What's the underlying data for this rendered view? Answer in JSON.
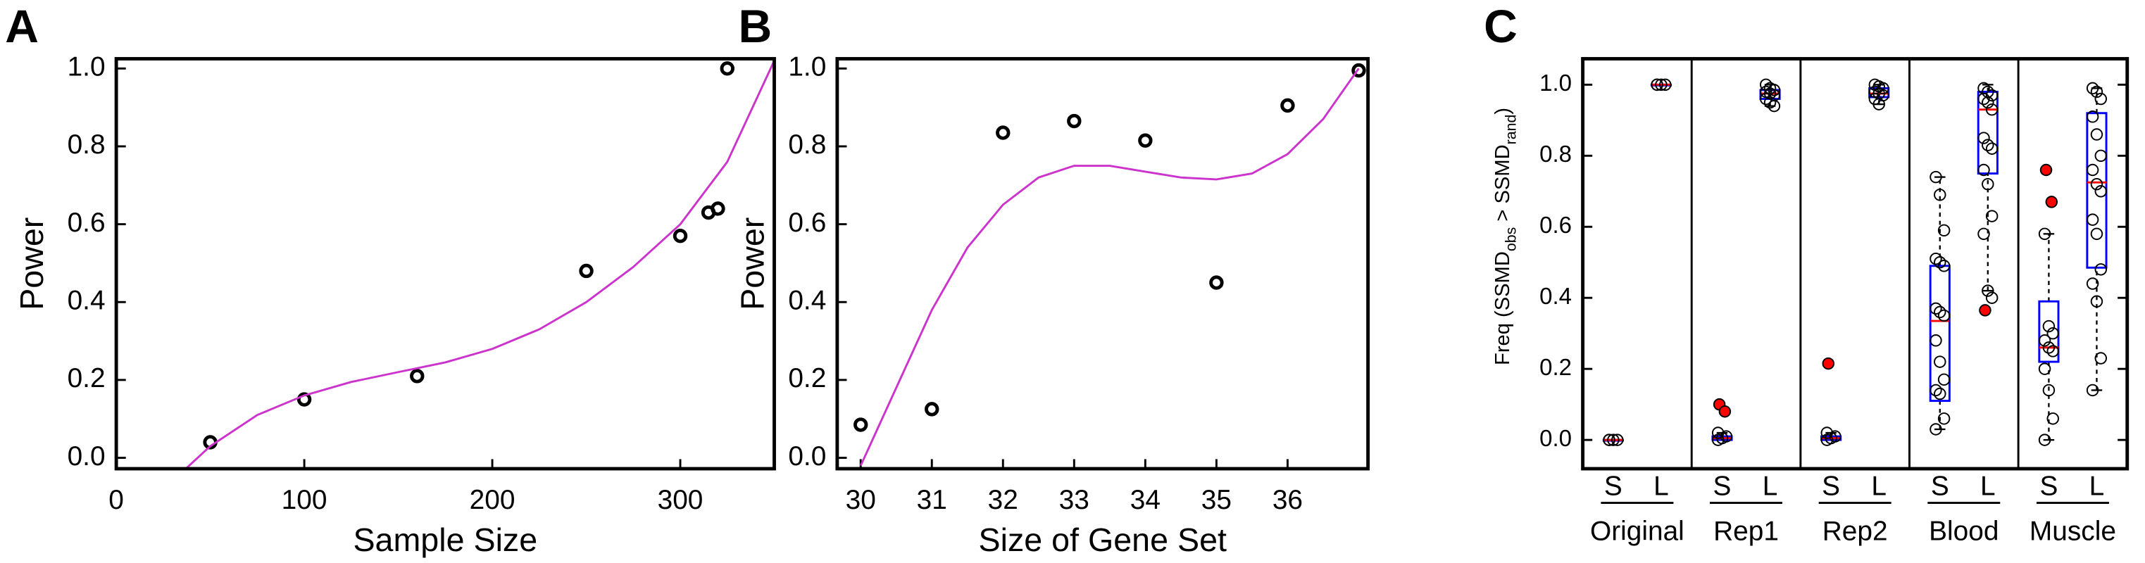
{
  "chart_data": [
    {
      "type": "scatter",
      "panel_label": "A",
      "xlabel": "Sample Size",
      "ylabel": "Power",
      "xlim": [
        0,
        350
      ],
      "ylim": [
        -0.028,
        1.025
      ],
      "xticks": [
        0,
        100,
        200,
        300
      ],
      "yticks": [
        {
          "value": 0,
          "label": "0.0"
        },
        {
          "value": 0.2,
          "label": "0.2"
        },
        {
          "value": 0.4,
          "label": "0.4"
        },
        {
          "value": 0.6,
          "label": "0.6"
        },
        {
          "value": 0.8,
          "label": "0.8"
        },
        {
          "value": 1,
          "label": "1.0"
        }
      ],
      "series": [
        {
          "type": "scatter",
          "color": "#000000",
          "x": [
            50,
            100,
            160,
            250,
            300,
            315,
            320,
            325
          ],
          "values": [
            0.04,
            0.15,
            0.21,
            0.48,
            0.57,
            0.63,
            0.64,
            1.0
          ]
        },
        {
          "type": "line",
          "color": "#cc33cc",
          "x": [
            37,
            50,
            75,
            100,
            125,
            150,
            175,
            200,
            225,
            250,
            275,
            300,
            325,
            350
          ],
          "values": [
            -0.028,
            0.03,
            0.11,
            0.16,
            0.195,
            0.22,
            0.245,
            0.28,
            0.33,
            0.4,
            0.49,
            0.6,
            0.76,
            1.02
          ]
        }
      ]
    },
    {
      "type": "scatter",
      "panel_label": "B",
      "xlabel": "Size of Gene Set",
      "ylabel": "Power",
      "xlim": [
        29.67,
        37.13
      ],
      "ylim": [
        -0.028,
        1.025
      ],
      "xticks": [
        30,
        31,
        32,
        33,
        34,
        35,
        36
      ],
      "yticks": [
        {
          "value": 0,
          "label": "0.0"
        },
        {
          "value": 0.2,
          "label": "0.2"
        },
        {
          "value": 0.4,
          "label": "0.4"
        },
        {
          "value": 0.6,
          "label": "0.6"
        },
        {
          "value": 0.8,
          "label": "0.8"
        },
        {
          "value": 1,
          "label": "1.0"
        }
      ],
      "series": [
        {
          "type": "scatter",
          "color": "#000000",
          "x": [
            30,
            31,
            32,
            33,
            34,
            35,
            36,
            37
          ],
          "values": [
            0.085,
            0.125,
            0.835,
            0.865,
            0.815,
            0.45,
            0.905,
            0.995
          ]
        },
        {
          "type": "line",
          "color": "#cc33cc",
          "x": [
            30,
            30.5,
            31,
            31.5,
            32,
            32.5,
            33,
            33.5,
            34,
            34.5,
            35,
            35.5,
            36,
            36.5,
            37
          ],
          "values": [
            -0.02,
            0.18,
            0.38,
            0.54,
            0.65,
            0.72,
            0.75,
            0.75,
            0.735,
            0.72,
            0.715,
            0.73,
            0.78,
            0.87,
            1.0
          ]
        }
      ]
    },
    {
      "type": "box",
      "panel_label": "C",
      "ylabel_parts": [
        "Freq (SSMD",
        "obs",
        " > SSMD",
        "rand",
        ")"
      ],
      "ylim": [
        -0.081,
        1.073
      ],
      "yticks": [
        {
          "value": 0,
          "label": "0.0"
        },
        {
          "value": 0.2,
          "label": "0.2"
        },
        {
          "value": 0.4,
          "label": "0.4"
        },
        {
          "value": 0.6,
          "label": "0.6"
        },
        {
          "value": 0.8,
          "label": "0.8"
        },
        {
          "value": 1,
          "label": "1.0"
        }
      ],
      "box_color": "#0000ff",
      "median_color": "#ff0000",
      "outlier_color": "#ff0000",
      "groups": [
        {
          "name": "Original",
          "boxes": [
            {
              "label": "S",
              "q1": 0,
              "median": 0,
              "q3": 0,
              "whisker_low": 0,
              "whisker_high": 0,
              "points": [
                0,
                0,
                0,
                0
              ],
              "outliers": []
            },
            {
              "label": "L",
              "q1": 1,
              "median": 1,
              "q3": 1,
              "whisker_low": 1,
              "whisker_high": 1,
              "points": [
                1,
                1,
                1,
                1
              ],
              "outliers": []
            }
          ]
        },
        {
          "name": "Rep1",
          "boxes": [
            {
              "label": "S",
              "q1": 0,
              "median": 0.005,
              "q3": 0.01,
              "whisker_low": 0,
              "whisker_high": 0.02,
              "points": [
                0,
                0.005,
                0.01,
                0.02
              ],
              "outliers": [
                0.1,
                0.08
              ]
            },
            {
              "label": "L",
              "q1": 0.96,
              "median": 0.975,
              "q3": 0.985,
              "whisker_low": 0.94,
              "whisker_high": 1.0,
              "points": [
                1.0,
                0.99,
                0.985,
                0.98,
                0.975,
                0.97,
                0.96,
                0.95,
                0.94
              ],
              "outliers": []
            }
          ]
        },
        {
          "name": "Rep2",
          "boxes": [
            {
              "label": "S",
              "q1": 0,
              "median": 0.005,
              "q3": 0.01,
              "whisker_low": 0,
              "whisker_high": 0.02,
              "points": [
                0,
                0.005,
                0.01,
                0.02
              ],
              "outliers": [
                0.215
              ]
            },
            {
              "label": "L",
              "q1": 0.965,
              "median": 0.975,
              "q3": 0.99,
              "whisker_low": 0.945,
              "whisker_high": 1.0,
              "points": [
                1.0,
                0.995,
                0.99,
                0.98,
                0.975,
                0.97,
                0.96,
                0.945
              ],
              "outliers": []
            }
          ]
        },
        {
          "name": "Blood",
          "boxes": [
            {
              "label": "S",
              "q1": 0.11,
              "median": 0.335,
              "q3": 0.49,
              "whisker_low": 0.03,
              "whisker_high": 0.74,
              "points": [
                0.74,
                0.69,
                0.59,
                0.51,
                0.5,
                0.49,
                0.37,
                0.36,
                0.35,
                0.28,
                0.22,
                0.17,
                0.14,
                0.13,
                0.06,
                0.03
              ],
              "outliers": []
            },
            {
              "label": "L",
              "q1": 0.75,
              "median": 0.93,
              "q3": 0.98,
              "whisker_low": 0.42,
              "whisker_high": 1.0,
              "points": [
                0.99,
                0.98,
                0.97,
                0.96,
                0.95,
                0.93,
                0.85,
                0.83,
                0.82,
                0.76,
                0.72,
                0.63,
                0.58,
                0.42,
                0.4
              ],
              "outliers": [
                0.365
              ]
            }
          ]
        },
        {
          "name": "Muscle",
          "boxes": [
            {
              "label": "S",
              "q1": 0.22,
              "median": 0.26,
              "q3": 0.39,
              "whisker_low": 0,
              "whisker_high": 0.58,
              "points": [
                0.58,
                0.32,
                0.3,
                0.28,
                0.26,
                0.25,
                0.2,
                0.14,
                0.06,
                0
              ],
              "outliers": [
                0.76,
                0.67
              ]
            },
            {
              "label": "L",
              "q1": 0.485,
              "median": 0.725,
              "q3": 0.92,
              "whisker_low": 0.14,
              "whisker_high": 0.99,
              "points": [
                0.99,
                0.98,
                0.96,
                0.91,
                0.86,
                0.8,
                0.76,
                0.72,
                0.7,
                0.62,
                0.58,
                0.48,
                0.44,
                0.39,
                0.23,
                0.14
              ],
              "outliers": []
            }
          ]
        }
      ]
    }
  ]
}
